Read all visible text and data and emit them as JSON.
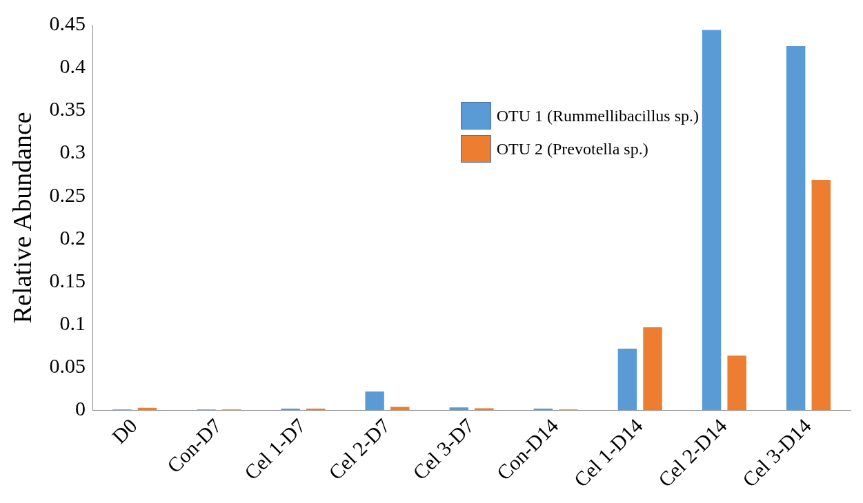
{
  "chart_data": {
    "type": "bar",
    "ylabel": "Relative Abundance",
    "categories": [
      "D0",
      "Con-D7",
      "Cel 1-D7",
      "Cel 2-D7",
      "Cel 3-D7",
      "Con-D14",
      "Cel 1-D14",
      "Cel 2-D14",
      "Cel 3-D14"
    ],
    "series": [
      {
        "name": "OTU 1 (Rummellibacillus sp.)",
        "color": "#5b9bd5",
        "values": [
          0.001,
          0.001,
          0.002,
          0.022,
          0.0035,
          0.002,
          0.072,
          0.444,
          0.425
        ]
      },
      {
        "name": "OTU 2 (Prevotella sp.)",
        "color": "#ed7d31",
        "values": [
          0.003,
          0.001,
          0.002,
          0.004,
          0.0025,
          0.001,
          0.097,
          0.064,
          0.269
        ]
      }
    ],
    "ylim": [
      0,
      0.45
    ],
    "yticks": [
      {
        "value": 0,
        "label": "0"
      },
      0.05,
      0.1,
      0.15,
      0.2,
      0.25,
      0.3,
      0.35,
      0.4,
      0.45
    ],
    "grid": false,
    "legend": "top right"
  }
}
